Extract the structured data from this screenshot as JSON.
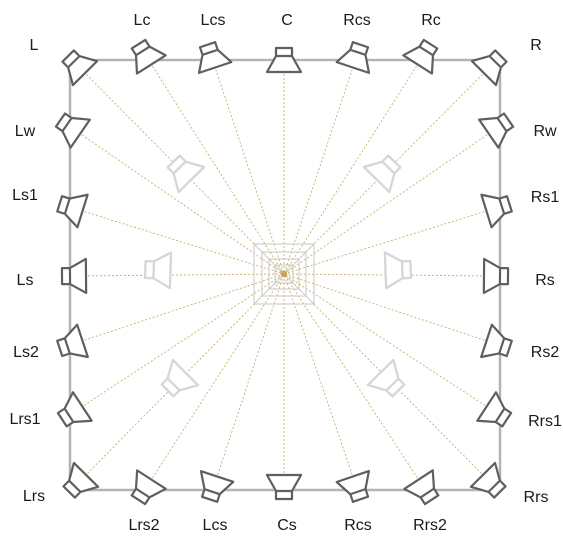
{
  "colors": {
    "room": "#b3b3b3",
    "speaker": "#5f5f5f",
    "ghost_speaker": "#d6d6d6",
    "ray": "#c9b06a",
    "listener": "#c9a15a",
    "listener_box": "#c7c7c7",
    "text": "#1a1a1a"
  },
  "speakers": [
    {
      "id": "L",
      "label": "L"
    },
    {
      "id": "Lc",
      "label": "Lc"
    },
    {
      "id": "Lcs",
      "label": "Lcs"
    },
    {
      "id": "C",
      "label": "C"
    },
    {
      "id": "Rcs",
      "label": "Rcs"
    },
    {
      "id": "Rc",
      "label": "Rc"
    },
    {
      "id": "R",
      "label": "R"
    },
    {
      "id": "Lw",
      "label": "Lw"
    },
    {
      "id": "Rw",
      "label": "Rw"
    },
    {
      "id": "Ls1",
      "label": "Ls1"
    },
    {
      "id": "Rs1",
      "label": "Rs1"
    },
    {
      "id": "Ls",
      "label": "Ls"
    },
    {
      "id": "Rs",
      "label": "Rs"
    },
    {
      "id": "Ls2",
      "label": "Ls2"
    },
    {
      "id": "Rs2",
      "label": "Rs2"
    },
    {
      "id": "Lrs1",
      "label": "Lrs1"
    },
    {
      "id": "Rrs1",
      "label": "Rrs1"
    },
    {
      "id": "Lrs",
      "label": "Lrs"
    },
    {
      "id": "Rrs",
      "label": "Rrs"
    },
    {
      "id": "Lrs2",
      "label": "Lrs2"
    },
    {
      "id": "Lcsb",
      "label": "Lcs"
    },
    {
      "id": "Cs",
      "label": "Cs"
    },
    {
      "id": "Rcsb",
      "label": "Rcs"
    },
    {
      "id": "Rrs2",
      "label": "Rrs2"
    }
  ],
  "ghost_speakers": [
    {
      "id": "ghost-front-left"
    },
    {
      "id": "ghost-front-right"
    },
    {
      "id": "ghost-left"
    },
    {
      "id": "ghost-right"
    },
    {
      "id": "ghost-rear-left"
    },
    {
      "id": "ghost-rear-right"
    }
  ]
}
